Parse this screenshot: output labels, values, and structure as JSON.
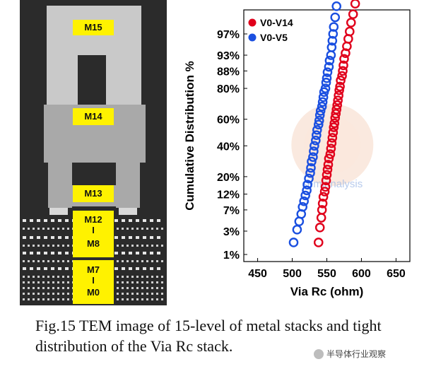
{
  "tem_labels": {
    "m15": "M15",
    "m14": "M14",
    "m13": "M13",
    "m12": "M12",
    "m12_sep": "I",
    "m8": "M8",
    "m7": "M7",
    "m7_sep": "I",
    "m0": "M0"
  },
  "chart_data": {
    "type": "scatter",
    "xlabel": "Via Rc (ohm)",
    "ylabel": "Cumulative Distribution %",
    "xlim": [
      430,
      670
    ],
    "x_ticks": [
      "450",
      "500",
      "550",
      "600",
      "650"
    ],
    "y_scale": "normal-probability",
    "y_ticks": [
      "97%",
      "93%",
      "88%",
      "80%",
      "60%",
      "40%",
      "20%",
      "12%",
      "7%",
      "3%",
      "1%"
    ],
    "legend_position": "top-left",
    "marker": "open-circle",
    "series": [
      {
        "name": "V0-V14",
        "color": "#e0001b",
        "x": [
          538,
          540,
          542,
          543,
          544,
          545,
          547,
          548,
          549,
          550,
          551,
          552,
          553,
          555,
          556,
          557,
          558,
          559,
          560,
          561,
          562,
          563,
          564,
          565,
          566,
          567,
          568,
          569,
          570,
          572,
          573,
          574,
          575,
          577,
          579,
          581,
          583,
          585,
          588,
          591
        ],
        "y": [
          1.8,
          3.5,
          5.2,
          7,
          8.8,
          11,
          13,
          15,
          18,
          21,
          24,
          27,
          31,
          34,
          38,
          42,
          46,
          50,
          54,
          57,
          61,
          64,
          67,
          70,
          73,
          76,
          79,
          81,
          84,
          86,
          88,
          90,
          92,
          93.5,
          95,
          96.3,
          97.3,
          98.2,
          98.8,
          99.3
        ]
      },
      {
        "name": "V0-V5",
        "color": "#1a4fe0",
        "x": [
          502,
          507,
          510,
          513,
          515,
          517,
          519,
          521,
          522,
          524,
          526,
          527,
          528,
          530,
          531,
          532,
          534,
          535,
          536,
          538,
          539,
          540,
          541,
          543,
          544,
          545,
          546,
          548,
          549,
          550,
          551,
          553,
          554,
          556,
          557,
          558,
          559,
          560,
          562,
          564
        ],
        "y": [
          1.8,
          3.2,
          4.5,
          6,
          7.8,
          9.5,
          11.5,
          13.5,
          16,
          19,
          22,
          25,
          29,
          32,
          36,
          40,
          44,
          48,
          52,
          56,
          59,
          63,
          66,
          69,
          72,
          75,
          78,
          80,
          83,
          85,
          87.5,
          89.5,
          91.5,
          93,
          94.8,
          96,
          97,
          97.8,
          98.6,
          99.2
        ]
      }
    ]
  },
  "chart_watermark": "semianalysis",
  "caption": "Fig.15 TEM image of 15-level of metal stacks and tight distribution of the Via Rc stack.",
  "watermark": "半导体行业观察"
}
